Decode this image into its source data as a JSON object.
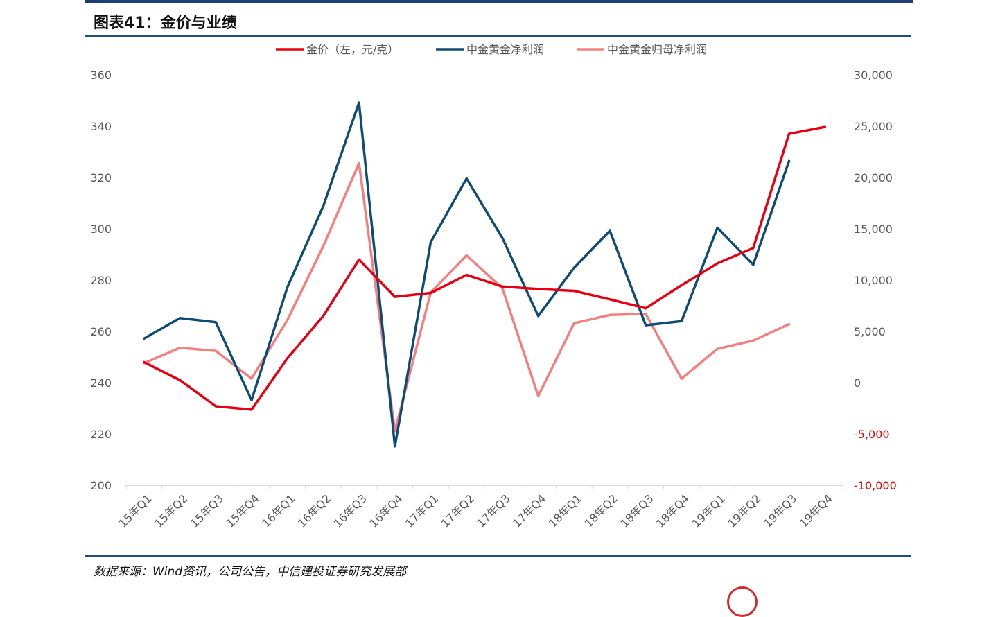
{
  "header": {
    "title": "图表41：金价与业绩"
  },
  "footer": {
    "source": "数据来源：Wind资讯，公司公告，中信建投证券研究发展部"
  },
  "chart_data": {
    "type": "line",
    "categories": [
      "15年Q1",
      "15年Q2",
      "15年Q3",
      "15年Q4",
      "16年Q1",
      "16年Q2",
      "16年Q3",
      "16年Q4",
      "17年Q1",
      "17年Q2",
      "17年Q3",
      "17年Q4",
      "18年Q1",
      "18年Q2",
      "18年Q3",
      "18年Q4",
      "19年Q1",
      "19年Q2",
      "19年Q3",
      "19年Q4"
    ],
    "y_left": {
      "ticks": [
        "360",
        "340",
        "320",
        "300",
        "280",
        "260",
        "240",
        "220",
        "200"
      ],
      "range": [
        200,
        360
      ]
    },
    "y_right": {
      "ticks": [
        "30,000",
        "25,000",
        "20,000",
        "15,000",
        "10,000",
        "5,000",
        "0",
        "-5,000",
        "-10,000"
      ],
      "range": [
        -10000,
        30000
      ],
      "negative_color": "#e00000"
    },
    "legend_position": "top-center",
    "grid": false,
    "series": [
      {
        "name": "金价（左，元/克）",
        "axis": "left",
        "color": "#e60012",
        "values": [
          248,
          241,
          230.8,
          229.5,
          249.5,
          266,
          288,
          273.5,
          275,
          282,
          277.5,
          276.5,
          275.8,
          272.5,
          269,
          278,
          286.5,
          292.5,
          337,
          339.7
        ]
      },
      {
        "name": "中金黄金净利润",
        "axis": "right",
        "color": "#0f4c75",
        "values": [
          4300,
          6300,
          5900,
          -1700,
          9300,
          17200,
          27300,
          -6200,
          13700,
          19900,
          14100,
          6500,
          11200,
          14800,
          5600,
          6000,
          15100,
          11500,
          21600,
          null
        ]
      },
      {
        "name": "中金黄金归母净利润",
        "axis": "right",
        "color": "#f47f7f",
        "values": [
          1900,
          3400,
          3100,
          400,
          6100,
          13300,
          21400,
          -4700,
          8800,
          12400,
          9200,
          -1300,
          5800,
          6600,
          6700,
          400,
          3300,
          4100,
          5700,
          null
        ]
      }
    ]
  }
}
